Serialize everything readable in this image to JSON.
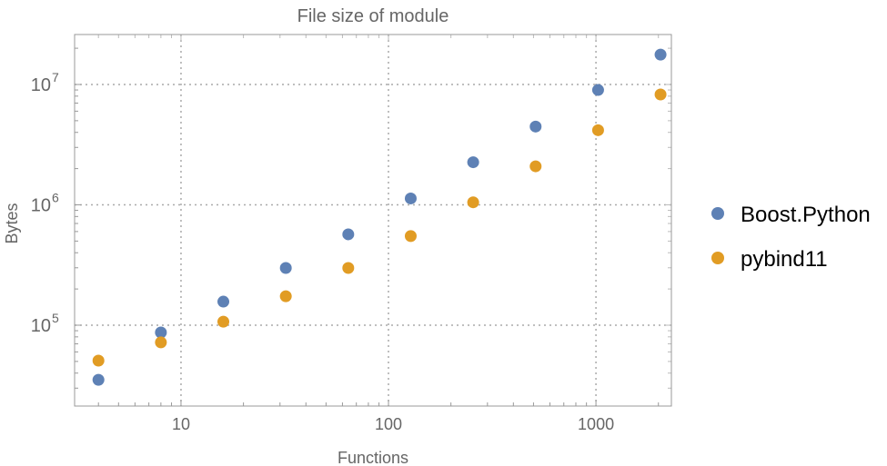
{
  "chart_data": {
    "type": "scatter",
    "title": "File size of module",
    "xlabel": "Functions",
    "ylabel": "Bytes",
    "xscale": "log",
    "yscale": "log",
    "xlim": [
      3.07,
      2310
    ],
    "ylim": [
      21300,
      26000000
    ],
    "grid": true,
    "legend_position": "right",
    "x_ticks": [
      {
        "value": 10,
        "label": "10"
      },
      {
        "value": 100,
        "label": "100"
      },
      {
        "value": 1000,
        "label": "1000"
      }
    ],
    "y_ticks": [
      {
        "value": 100000,
        "base": "10",
        "exp": "5"
      },
      {
        "value": 1000000,
        "base": "10",
        "exp": "6"
      },
      {
        "value": 10000000,
        "base": "10",
        "exp": "7"
      }
    ],
    "x": [
      4,
      8,
      16,
      32,
      64,
      128,
      256,
      512,
      1024,
      2048
    ],
    "series": [
      {
        "name": "Boost.Python",
        "color": "#5e81b5",
        "values": [
          35200,
          87000,
          157000,
          299000,
          569000,
          1130000,
          2260000,
          4470000,
          9000000,
          17700000
        ]
      },
      {
        "name": "pybind11",
        "color": "#e19c24",
        "values": [
          50800,
          72000,
          107000,
          174000,
          299000,
          550000,
          1050000,
          2090000,
          4170000,
          8260000
        ]
      }
    ]
  }
}
